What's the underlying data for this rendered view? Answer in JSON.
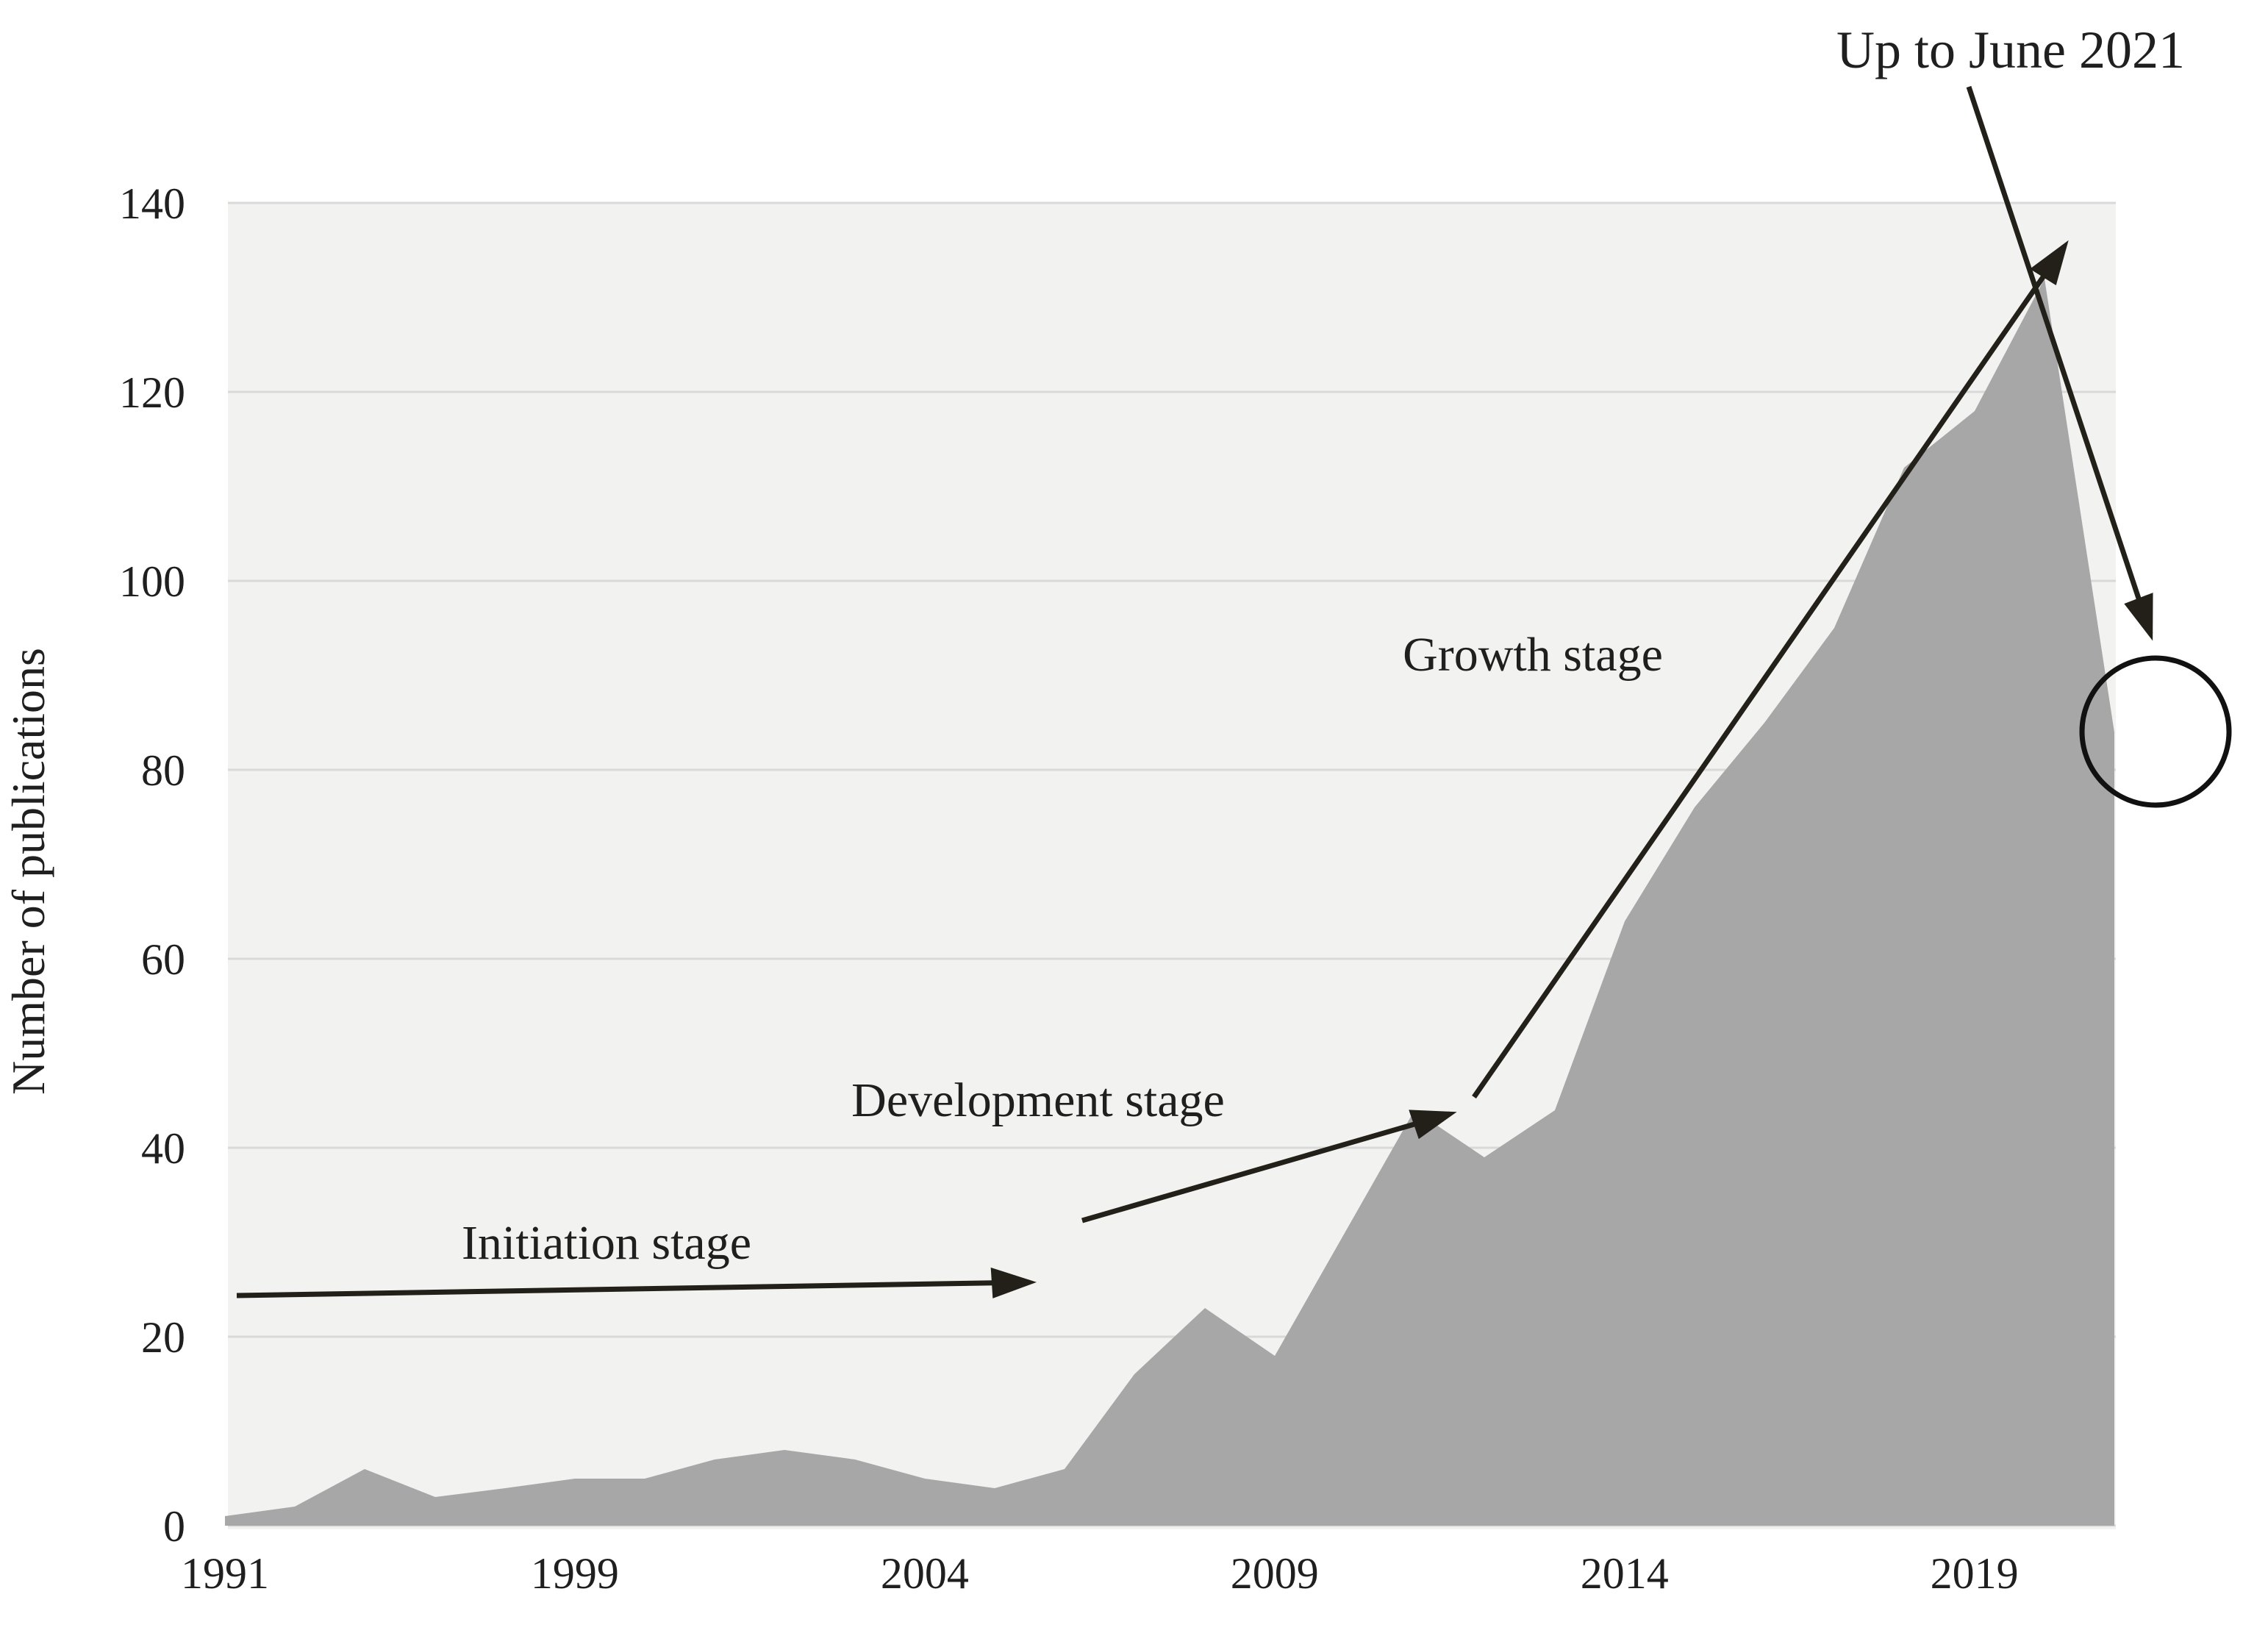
{
  "chart_data": {
    "type": "area",
    "title": "",
    "xlabel": "",
    "ylabel": "Number of publications",
    "ylim": [
      0,
      140
    ],
    "y_ticks": [
      0,
      20,
      40,
      60,
      80,
      100,
      120,
      140
    ],
    "x_tick_labels": [
      "1991",
      "1999",
      "2004",
      "2009",
      "2014",
      "2019"
    ],
    "x_tick_indices": [
      0,
      5,
      10,
      15,
      20,
      25
    ],
    "x_range_note": "categories span 1991 to June 2021, 28 points",
    "values": [
      1,
      2,
      6,
      3,
      4,
      5,
      5,
      7,
      8,
      7,
      5,
      4,
      6,
      16,
      23,
      18,
      31,
      44,
      39,
      44,
      64,
      76,
      85,
      95,
      112,
      118,
      132,
      84
    ],
    "grid": true,
    "legend": "none",
    "annotations": [
      {
        "text": "Initiation stage",
        "type": "arrow-label"
      },
      {
        "text": "Development stage",
        "type": "arrow-label"
      },
      {
        "text": "Growth stage",
        "type": "arrow-label"
      },
      {
        "text": "Up to June 2021",
        "type": "arrow-label"
      },
      {
        "text": "",
        "type": "circle-highlight-on-final-point"
      }
    ]
  },
  "labels": {
    "ylabel": "Number of publications",
    "initiation": "Initiation stage",
    "development": "Development stage",
    "growth": "Growth stage",
    "up_to_june": "Up to June 2021"
  },
  "colors": {
    "area_fill": "#a7a7a7",
    "plot_background": "#f2f2f1",
    "gridline": "#d9d9d9",
    "text": "#1f1f1f",
    "arrow": "#23201a",
    "page_background": "#ffffff"
  }
}
